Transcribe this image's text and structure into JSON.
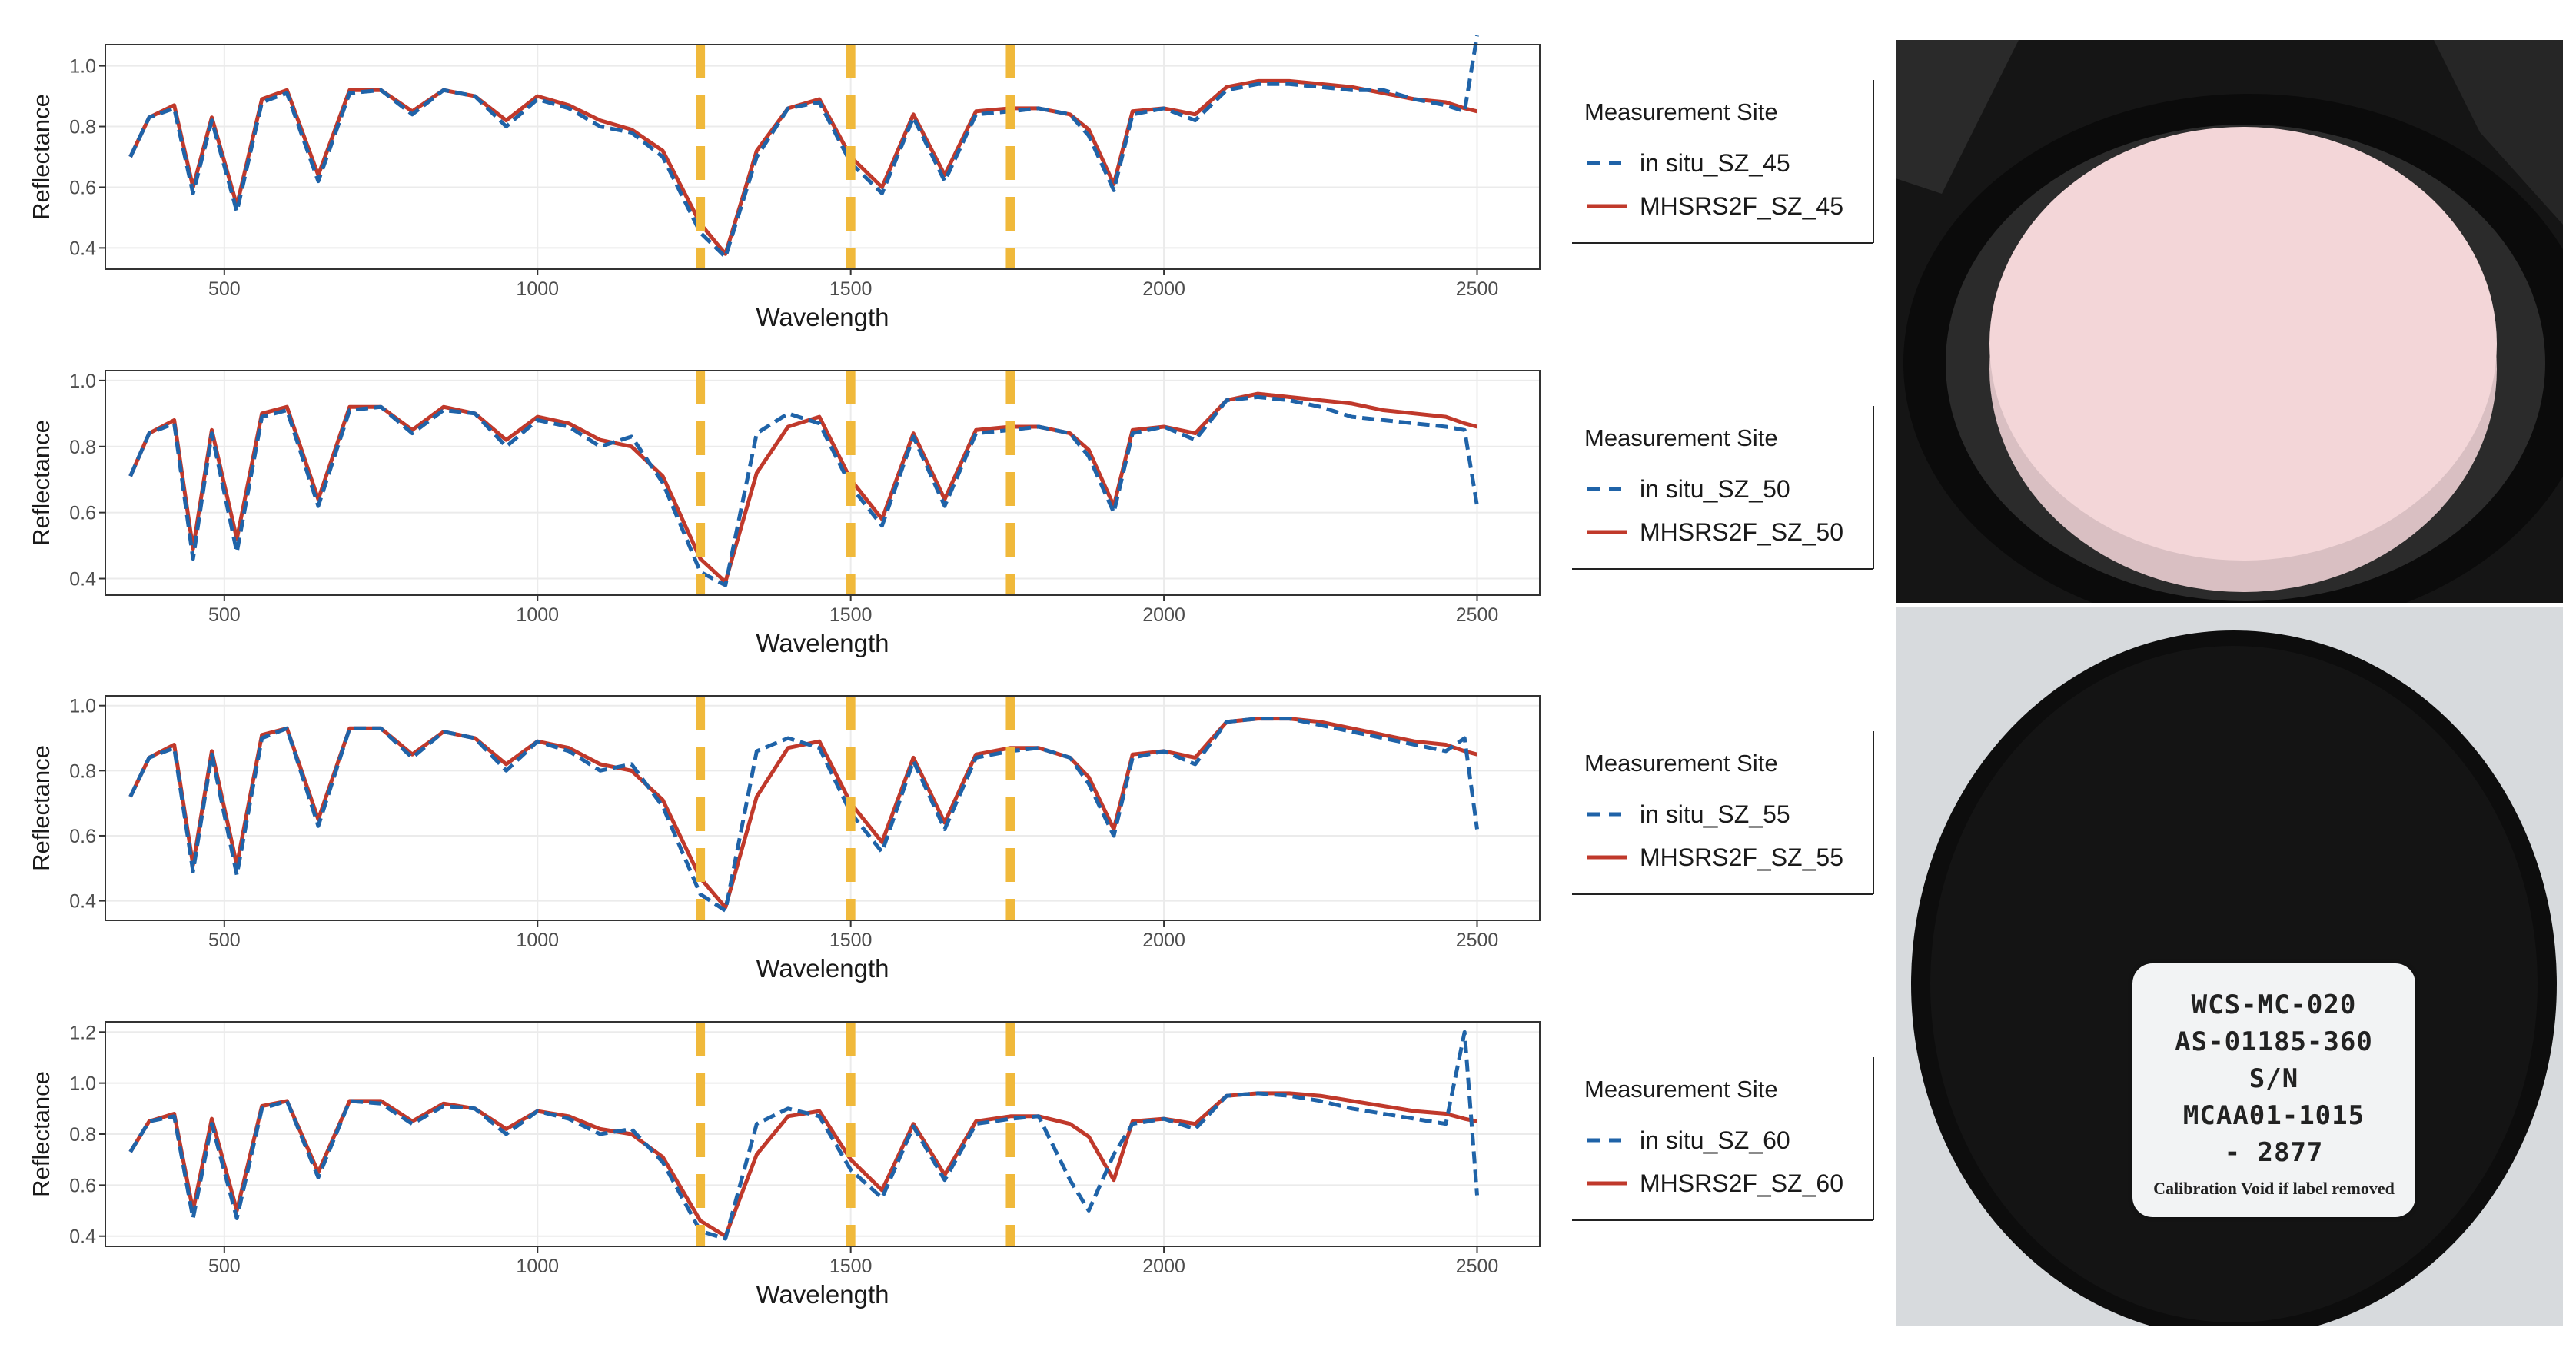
{
  "colors": {
    "insitu": "#1f63a8",
    "model": "#c0392b",
    "marker": "#f0b93b",
    "panel_border": "#333333",
    "grid": "#ebebeb"
  },
  "legend_title": "Measurement Site",
  "chart_data": [
    {
      "type": "line",
      "xlabel": "Wavelength",
      "ylabel": "Reflectance",
      "xlim": [
        310,
        2600
      ],
      "ylim": [
        0.33,
        1.07
      ],
      "xticks": [
        500,
        1000,
        1500,
        2000,
        2500
      ],
      "yticks": [
        0.4,
        0.6,
        0.8,
        1.0
      ],
      "ytick_labels": [
        "0.4",
        "0.6",
        "0.8",
        "1.0"
      ],
      "vlines": [
        1260,
        1500,
        1755
      ],
      "legend": {
        "title": "Measurement Site",
        "position": "right"
      },
      "series": [
        {
          "name": "in situ_SZ_45",
          "style": "dashed",
          "x": [
            350,
            380,
            420,
            450,
            480,
            520,
            560,
            600,
            650,
            700,
            750,
            800,
            850,
            900,
            950,
            1000,
            1050,
            1100,
            1150,
            1200,
            1260,
            1300,
            1350,
            1400,
            1450,
            1500,
            1550,
            1600,
            1650,
            1700,
            1755,
            1800,
            1850,
            1880,
            1920,
            1950,
            2000,
            2050,
            2100,
            2150,
            2200,
            2250,
            2300,
            2350,
            2400,
            2450,
            2480,
            2500
          ],
          "y": [
            0.7,
            0.83,
            0.86,
            0.58,
            0.82,
            0.52,
            0.88,
            0.91,
            0.62,
            0.91,
            0.92,
            0.84,
            0.92,
            0.9,
            0.8,
            0.89,
            0.86,
            0.8,
            0.78,
            0.7,
            0.45,
            0.37,
            0.7,
            0.86,
            0.88,
            0.68,
            0.58,
            0.83,
            0.62,
            0.84,
            0.85,
            0.86,
            0.84,
            0.77,
            0.59,
            0.84,
            0.86,
            0.82,
            0.92,
            0.94,
            0.94,
            0.93,
            0.92,
            0.92,
            0.89,
            0.87,
            0.85,
            1.1
          ]
        },
        {
          "name": "MHSRS2F_SZ_45",
          "style": "solid",
          "x": [
            350,
            380,
            420,
            450,
            480,
            520,
            560,
            600,
            650,
            700,
            750,
            800,
            850,
            900,
            950,
            1000,
            1050,
            1100,
            1150,
            1200,
            1260,
            1300,
            1350,
            1400,
            1450,
            1500,
            1550,
            1600,
            1650,
            1700,
            1755,
            1800,
            1850,
            1880,
            1920,
            1950,
            2000,
            2050,
            2100,
            2150,
            2200,
            2250,
            2300,
            2350,
            2400,
            2450,
            2480,
            2500
          ],
          "y": [
            0.7,
            0.83,
            0.87,
            0.6,
            0.83,
            0.54,
            0.89,
            0.92,
            0.64,
            0.92,
            0.92,
            0.85,
            0.92,
            0.9,
            0.82,
            0.9,
            0.87,
            0.82,
            0.79,
            0.72,
            0.48,
            0.38,
            0.72,
            0.86,
            0.89,
            0.7,
            0.6,
            0.84,
            0.64,
            0.85,
            0.86,
            0.86,
            0.84,
            0.79,
            0.61,
            0.85,
            0.86,
            0.84,
            0.93,
            0.95,
            0.95,
            0.94,
            0.93,
            0.91,
            0.89,
            0.88,
            0.86,
            0.85
          ]
        }
      ]
    },
    {
      "type": "line",
      "xlabel": "Wavelength",
      "ylabel": "Reflectance",
      "xlim": [
        310,
        2600
      ],
      "ylim": [
        0.35,
        1.03
      ],
      "xticks": [
        500,
        1000,
        1500,
        2000,
        2500
      ],
      "yticks": [
        0.4,
        0.6,
        0.8,
        1.0
      ],
      "ytick_labels": [
        "0.4",
        "0.6",
        "0.8",
        "1.0"
      ],
      "vlines": [
        1260,
        1500,
        1755
      ],
      "legend": {
        "title": "Measurement Site",
        "position": "right"
      },
      "series": [
        {
          "name": "in situ_SZ_50",
          "style": "dashed",
          "x": [
            350,
            380,
            420,
            450,
            480,
            520,
            560,
            600,
            650,
            700,
            750,
            800,
            850,
            900,
            950,
            1000,
            1050,
            1100,
            1150,
            1200,
            1260,
            1300,
            1350,
            1400,
            1450,
            1500,
            1550,
            1600,
            1650,
            1700,
            1755,
            1800,
            1850,
            1880,
            1920,
            1950,
            2000,
            2050,
            2100,
            2150,
            2200,
            2250,
            2300,
            2350,
            2400,
            2450,
            2480,
            2500
          ],
          "y": [
            0.71,
            0.84,
            0.87,
            0.46,
            0.84,
            0.48,
            0.89,
            0.91,
            0.62,
            0.91,
            0.92,
            0.84,
            0.91,
            0.9,
            0.8,
            0.88,
            0.86,
            0.8,
            0.83,
            0.69,
            0.42,
            0.38,
            0.84,
            0.9,
            0.87,
            0.68,
            0.56,
            0.83,
            0.62,
            0.84,
            0.85,
            0.86,
            0.84,
            0.77,
            0.6,
            0.84,
            0.86,
            0.82,
            0.94,
            0.95,
            0.94,
            0.92,
            0.89,
            0.88,
            0.87,
            0.86,
            0.85,
            0.62
          ]
        },
        {
          "name": "MHSRS2F_SZ_50",
          "style": "solid",
          "x": [
            350,
            380,
            420,
            450,
            480,
            520,
            560,
            600,
            650,
            700,
            750,
            800,
            850,
            900,
            950,
            1000,
            1050,
            1100,
            1150,
            1200,
            1260,
            1300,
            1350,
            1400,
            1450,
            1500,
            1550,
            1600,
            1650,
            1700,
            1755,
            1800,
            1850,
            1880,
            1920,
            1950,
            2000,
            2050,
            2100,
            2150,
            2200,
            2250,
            2300,
            2350,
            2400,
            2450,
            2480,
            2500
          ],
          "y": [
            0.71,
            0.84,
            0.88,
            0.49,
            0.85,
            0.52,
            0.9,
            0.92,
            0.64,
            0.92,
            0.92,
            0.85,
            0.92,
            0.9,
            0.82,
            0.89,
            0.87,
            0.82,
            0.8,
            0.71,
            0.46,
            0.39,
            0.72,
            0.86,
            0.89,
            0.7,
            0.58,
            0.84,
            0.64,
            0.85,
            0.86,
            0.86,
            0.84,
            0.79,
            0.62,
            0.85,
            0.86,
            0.84,
            0.94,
            0.96,
            0.95,
            0.94,
            0.93,
            0.91,
            0.9,
            0.89,
            0.87,
            0.86
          ]
        }
      ]
    },
    {
      "type": "line",
      "xlabel": "Wavelength",
      "ylabel": "Reflectance",
      "xlim": [
        310,
        2600
      ],
      "ylim": [
        0.34,
        1.03
      ],
      "xticks": [
        500,
        1000,
        1500,
        2000,
        2500
      ],
      "yticks": [
        0.4,
        0.6,
        0.8,
        1.0
      ],
      "ytick_labels": [
        "0.4",
        "0.6",
        "0.8",
        "1.0"
      ],
      "vlines": [
        1260,
        1500,
        1755
      ],
      "legend": {
        "title": "Measurement Site",
        "position": "right"
      },
      "series": [
        {
          "name": "in situ_SZ_55",
          "style": "dashed",
          "x": [
            350,
            380,
            420,
            450,
            480,
            520,
            560,
            600,
            650,
            700,
            750,
            800,
            850,
            900,
            950,
            1000,
            1050,
            1100,
            1150,
            1200,
            1260,
            1300,
            1350,
            1400,
            1450,
            1500,
            1550,
            1600,
            1650,
            1700,
            1755,
            1800,
            1850,
            1880,
            1920,
            1950,
            2000,
            2050,
            2100,
            2150,
            2200,
            2250,
            2300,
            2350,
            2400,
            2450,
            2480,
            2500
          ],
          "y": [
            0.72,
            0.84,
            0.87,
            0.49,
            0.85,
            0.48,
            0.9,
            0.93,
            0.63,
            0.93,
            0.93,
            0.84,
            0.92,
            0.9,
            0.8,
            0.89,
            0.86,
            0.8,
            0.82,
            0.69,
            0.42,
            0.37,
            0.86,
            0.9,
            0.87,
            0.67,
            0.55,
            0.83,
            0.62,
            0.84,
            0.86,
            0.87,
            0.84,
            0.76,
            0.6,
            0.84,
            0.86,
            0.82,
            0.95,
            0.96,
            0.96,
            0.94,
            0.92,
            0.9,
            0.88,
            0.86,
            0.9,
            0.62
          ]
        },
        {
          "name": "MHSRS2F_SZ_55",
          "style": "solid",
          "x": [
            350,
            380,
            420,
            450,
            480,
            520,
            560,
            600,
            650,
            700,
            750,
            800,
            850,
            900,
            950,
            1000,
            1050,
            1100,
            1150,
            1200,
            1260,
            1300,
            1350,
            1400,
            1450,
            1500,
            1550,
            1600,
            1650,
            1700,
            1755,
            1800,
            1850,
            1880,
            1920,
            1950,
            2000,
            2050,
            2100,
            2150,
            2200,
            2250,
            2300,
            2350,
            2400,
            2450,
            2480,
            2500
          ],
          "y": [
            0.72,
            0.84,
            0.88,
            0.51,
            0.86,
            0.51,
            0.91,
            0.93,
            0.65,
            0.93,
            0.93,
            0.85,
            0.92,
            0.9,
            0.82,
            0.89,
            0.87,
            0.82,
            0.8,
            0.71,
            0.47,
            0.38,
            0.72,
            0.87,
            0.89,
            0.7,
            0.58,
            0.84,
            0.64,
            0.85,
            0.87,
            0.87,
            0.84,
            0.78,
            0.62,
            0.85,
            0.86,
            0.84,
            0.95,
            0.96,
            0.96,
            0.95,
            0.93,
            0.91,
            0.89,
            0.88,
            0.86,
            0.85
          ]
        }
      ]
    },
    {
      "type": "line",
      "xlabel": "Wavelength",
      "ylabel": "Reflectance",
      "xlim": [
        310,
        2600
      ],
      "ylim": [
        0.36,
        1.24
      ],
      "xticks": [
        500,
        1000,
        1500,
        2000,
        2500
      ],
      "yticks": [
        0.4,
        0.6,
        0.8,
        1.0,
        1.2
      ],
      "ytick_labels": [
        "0.4",
        "0.6",
        "0.8",
        "1.0",
        "1.2"
      ],
      "vlines": [
        1260,
        1500,
        1755
      ],
      "legend": {
        "title": "Measurement Site",
        "position": "right"
      },
      "series": [
        {
          "name": "in situ_SZ_60",
          "style": "dashed",
          "x": [
            350,
            380,
            420,
            450,
            480,
            520,
            560,
            600,
            650,
            700,
            750,
            800,
            850,
            900,
            950,
            1000,
            1050,
            1100,
            1150,
            1200,
            1260,
            1300,
            1350,
            1400,
            1450,
            1500,
            1550,
            1600,
            1650,
            1700,
            1755,
            1800,
            1850,
            1880,
            1920,
            1950,
            2000,
            2050,
            2100,
            2150,
            2200,
            2250,
            2300,
            2350,
            2400,
            2450,
            2480,
            2500
          ],
          "y": [
            0.73,
            0.85,
            0.87,
            0.47,
            0.84,
            0.47,
            0.9,
            0.93,
            0.63,
            0.93,
            0.92,
            0.84,
            0.91,
            0.9,
            0.8,
            0.89,
            0.86,
            0.8,
            0.82,
            0.69,
            0.42,
            0.39,
            0.84,
            0.9,
            0.87,
            0.66,
            0.55,
            0.83,
            0.62,
            0.84,
            0.86,
            0.87,
            0.62,
            0.5,
            0.72,
            0.84,
            0.86,
            0.82,
            0.95,
            0.96,
            0.95,
            0.93,
            0.9,
            0.88,
            0.86,
            0.84,
            1.2,
            0.56
          ]
        },
        {
          "name": "MHSRS2F_SZ_60",
          "style": "solid",
          "x": [
            350,
            380,
            420,
            450,
            480,
            520,
            560,
            600,
            650,
            700,
            750,
            800,
            850,
            900,
            950,
            1000,
            1050,
            1100,
            1150,
            1200,
            1260,
            1300,
            1350,
            1400,
            1450,
            1500,
            1550,
            1600,
            1650,
            1700,
            1755,
            1800,
            1850,
            1880,
            1920,
            1950,
            2000,
            2050,
            2100,
            2150,
            2200,
            2250,
            2300,
            2350,
            2400,
            2450,
            2480,
            2500
          ],
          "y": [
            0.73,
            0.85,
            0.88,
            0.5,
            0.86,
            0.5,
            0.91,
            0.93,
            0.65,
            0.93,
            0.93,
            0.85,
            0.92,
            0.9,
            0.82,
            0.89,
            0.87,
            0.82,
            0.8,
            0.71,
            0.46,
            0.4,
            0.72,
            0.87,
            0.89,
            0.7,
            0.58,
            0.84,
            0.64,
            0.85,
            0.87,
            0.87,
            0.84,
            0.79,
            0.62,
            0.85,
            0.86,
            0.84,
            0.95,
            0.96,
            0.96,
            0.95,
            0.93,
            0.91,
            0.89,
            0.88,
            0.86,
            0.85
          ]
        }
      ]
    }
  ],
  "photos": {
    "label_lines": [
      "WCS-MC-020",
      "AS-01185-360",
      "S/N",
      "MCAA01-1015",
      "- 2877"
    ],
    "label_note": "Calibration Void if label removed"
  }
}
